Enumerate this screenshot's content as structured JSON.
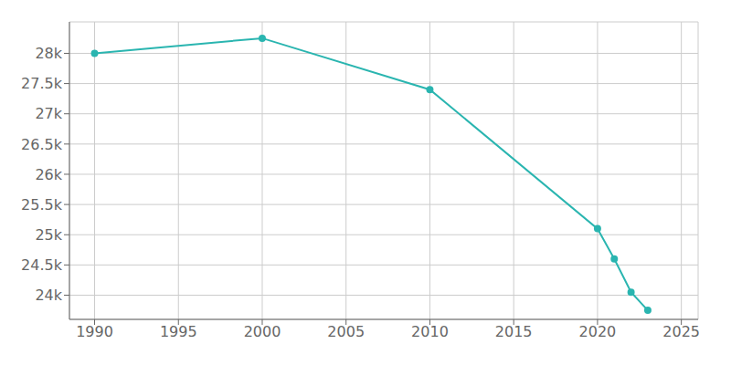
{
  "chart_data": {
    "type": "line",
    "x": [
      1990,
      2000,
      2010,
      2020,
      2021,
      2022,
      2023
    ],
    "values": [
      28000,
      28250,
      27400,
      25100,
      24600,
      24050,
      23750
    ],
    "color": "#2ab5b0",
    "marker": "circle",
    "grid": true,
    "xlim": [
      1988.5,
      2026
    ],
    "xticks": [
      1990,
      1995,
      2000,
      2005,
      2010,
      2015,
      2020,
      2025
    ],
    "ylim": [
      23600,
      28520
    ],
    "yticks": [
      {
        "value": 24000,
        "label": "24k"
      },
      {
        "value": 24500,
        "label": "24.5k"
      },
      {
        "value": 25000,
        "label": "25k"
      },
      {
        "value": 25500,
        "label": "25.5k"
      },
      {
        "value": 26000,
        "label": "26k"
      },
      {
        "value": 26500,
        "label": "26.5k"
      },
      {
        "value": 27000,
        "label": "27k"
      },
      {
        "value": 27500,
        "label": "27.5k"
      },
      {
        "value": 28000,
        "label": "28k"
      }
    ]
  }
}
